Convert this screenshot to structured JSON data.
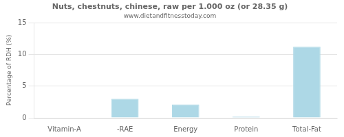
{
  "chart_data": {
    "type": "bar",
    "title": "Nuts, chestnuts, chinese, raw per 1.000 oz (or 28.35 g)",
    "subtitle": "www.dietandfitnesstoday.com",
    "categories": [
      "Vitamin-A",
      "-RAE",
      "Energy",
      "Protein",
      "Total-Fat"
    ],
    "values": [
      0.0,
      3.0,
      2.1,
      0.2,
      11.2
    ],
    "color": "#add8e6",
    "ylabel": "Percentage of RDH (%)",
    "ylim": [
      0,
      15
    ],
    "yticks": [
      0,
      5,
      10,
      15
    ],
    "grid": true
  }
}
